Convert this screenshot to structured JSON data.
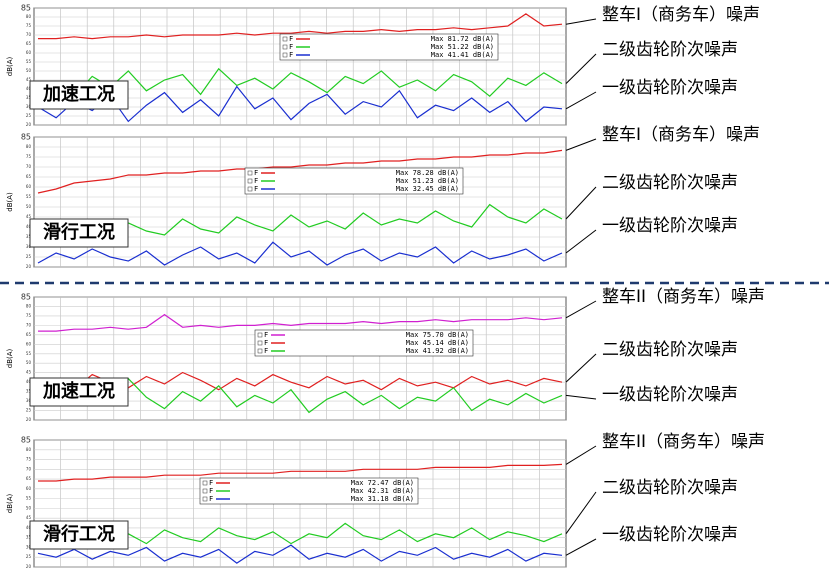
{
  "chart_data": [
    {
      "type": "line",
      "condition": "加速工况",
      "y_label": "dB(A)",
      "ylim": [
        20,
        85
      ],
      "yticks": [
        20,
        25,
        30,
        35,
        40,
        45,
        50,
        55,
        60,
        65,
        70,
        75,
        80,
        85
      ],
      "grid": true,
      "annotations": [
        "整车I（商务车）噪声",
        "二级齿轮阶次噪声",
        "一级齿轮阶次噪声"
      ],
      "series": [
        {
          "name": "F",
          "color": "#e02020",
          "max_label": "Max 81.72 dB(A)",
          "values": [
            68,
            68,
            69,
            68,
            69,
            69,
            70,
            69,
            70,
            70,
            70,
            71,
            70,
            71,
            71,
            72,
            71,
            72,
            72,
            73,
            72,
            73,
            73,
            74,
            73,
            74,
            75,
            81.7,
            75,
            76
          ]
        },
        {
          "name": "F",
          "color": "#22cc22",
          "max_label": "Max 51.22 dB(A)",
          "values": [
            38,
            44,
            36,
            47,
            41,
            50,
            39,
            45,
            48,
            37,
            51.2,
            42,
            46,
            40,
            49,
            44,
            38,
            47,
            43,
            50,
            41,
            45,
            39,
            48,
            44,
            36,
            46,
            42,
            49,
            43
          ]
        },
        {
          "name": "F",
          "color": "#1a2fd0",
          "max_label": "Max 41.41 dB(A)",
          "values": [
            30,
            24,
            33,
            28,
            36,
            22,
            31,
            38,
            27,
            34,
            25,
            41.4,
            29,
            35,
            23,
            32,
            37,
            26,
            33,
            30,
            39,
            24,
            31,
            28,
            35,
            27,
            33,
            22,
            30,
            29
          ]
        }
      ]
    },
    {
      "type": "line",
      "condition": "滑行工况",
      "y_label": "dB(A)",
      "ylim": [
        20,
        85
      ],
      "yticks": [
        20,
        25,
        30,
        35,
        40,
        45,
        50,
        55,
        60,
        65,
        70,
        75,
        80,
        85
      ],
      "grid": true,
      "annotations": [
        "整车I（商务车）噪声",
        "二级齿轮阶次噪声",
        "一级齿轮阶次噪声"
      ],
      "series": [
        {
          "name": "F",
          "color": "#e02020",
          "max_label": "Max 78.28 dB(A)",
          "values": [
            57,
            59,
            62,
            63,
            64,
            66,
            66,
            67,
            67,
            68,
            68,
            69,
            69,
            70,
            70,
            71,
            71,
            72,
            72,
            73,
            73,
            74,
            74,
            75,
            75,
            76,
            76,
            77,
            77,
            78.3
          ]
        },
        {
          "name": "F",
          "color": "#22cc22",
          "max_label": "Max 51.23 dB(A)",
          "values": [
            30,
            36,
            33,
            40,
            35,
            42,
            38,
            36,
            44,
            39,
            37,
            45,
            41,
            38,
            46,
            40,
            43,
            39,
            47,
            41,
            44,
            42,
            48,
            43,
            40,
            51.2,
            45,
            42,
            49,
            44
          ]
        },
        {
          "name": "F",
          "color": "#1a2fd0",
          "max_label": "Max 32.45 dB(A)",
          "values": [
            22,
            27,
            24,
            29,
            25,
            23,
            28,
            21,
            26,
            30,
            24,
            27,
            22,
            32.4,
            25,
            28,
            21,
            26,
            29,
            23,
            27,
            25,
            30,
            22,
            28,
            24,
            26,
            29,
            23,
            27
          ]
        }
      ]
    },
    {
      "type": "line",
      "condition": "加速工况",
      "y_label": "dB(A)",
      "ylim": [
        20,
        85
      ],
      "yticks": [
        20,
        25,
        30,
        35,
        40,
        45,
        50,
        55,
        60,
        65,
        70,
        75,
        80,
        85
      ],
      "grid": true,
      "annotations": [
        "整车II（商务车）噪声",
        "二级齿轮阶次噪声",
        "一级齿轮阶次噪声"
      ],
      "series": [
        {
          "name": "F",
          "color": "#d020d0",
          "max_label": "Max 75.70 dB(A)",
          "values": [
            67,
            67,
            68,
            68,
            69,
            68,
            69,
            75.7,
            69,
            70,
            69,
            70,
            70,
            71,
            70,
            71,
            71,
            71,
            72,
            71,
            72,
            72,
            73,
            72,
            73,
            73,
            73,
            74,
            73,
            74
          ]
        },
        {
          "name": "F",
          "color": "#e02020",
          "max_label": "Max 45.14 dB(A)",
          "values": [
            38,
            42,
            36,
            44,
            40,
            37,
            43,
            39,
            45.1,
            41,
            36,
            42,
            38,
            44,
            40,
            37,
            43,
            39,
            41,
            36,
            42,
            38,
            40,
            37,
            43,
            39,
            41,
            38,
            42,
            40
          ]
        },
        {
          "name": "F",
          "color": "#22cc22",
          "max_label": "Max 41.92 dB(A)",
          "values": [
            34,
            38,
            30,
            36,
            28,
            41.9,
            32,
            26,
            35,
            30,
            38,
            27,
            33,
            29,
            36,
            24,
            31,
            35,
            28,
            33,
            26,
            32,
            30,
            37,
            25,
            31,
            28,
            34,
            29,
            33
          ]
        }
      ]
    },
    {
      "type": "line",
      "condition": "滑行工况",
      "y_label": "dB(A)",
      "ylim": [
        20,
        85
      ],
      "yticks": [
        20,
        25,
        30,
        35,
        40,
        45,
        50,
        55,
        60,
        65,
        70,
        75,
        80,
        85
      ],
      "grid": true,
      "annotations": [
        "整车II（商务车）噪声",
        "二级齿轮阶次噪声",
        "一级齿轮阶次噪声"
      ],
      "series": [
        {
          "name": "F",
          "color": "#e02020",
          "max_label": "Max 72.47 dB(A)",
          "values": [
            64,
            64,
            65,
            65,
            66,
            66,
            66,
            67,
            67,
            67,
            68,
            68,
            68,
            68,
            69,
            69,
            69,
            69,
            70,
            70,
            70,
            70,
            71,
            71,
            71,
            71,
            72,
            72,
            72,
            72.5
          ]
        },
        {
          "name": "F",
          "color": "#22cc22",
          "max_label": "Max 42.31 dB(A)",
          "values": [
            33,
            36,
            31,
            38,
            34,
            37,
            32,
            39,
            35,
            33,
            40,
            36,
            34,
            38,
            32,
            37,
            35,
            42.3,
            36,
            34,
            39,
            33,
            37,
            35,
            40,
            34,
            38,
            36,
            33,
            37
          ]
        },
        {
          "name": "F",
          "color": "#1a2fd0",
          "max_label": "Max 31.18 dB(A)",
          "values": [
            27,
            25,
            29,
            24,
            28,
            26,
            30,
            23,
            27,
            25,
            29,
            22,
            28,
            26,
            31.2,
            24,
            27,
            25,
            29,
            23,
            28,
            26,
            30,
            24,
            27,
            25,
            29,
            23,
            27,
            26
          ]
        }
      ]
    }
  ]
}
